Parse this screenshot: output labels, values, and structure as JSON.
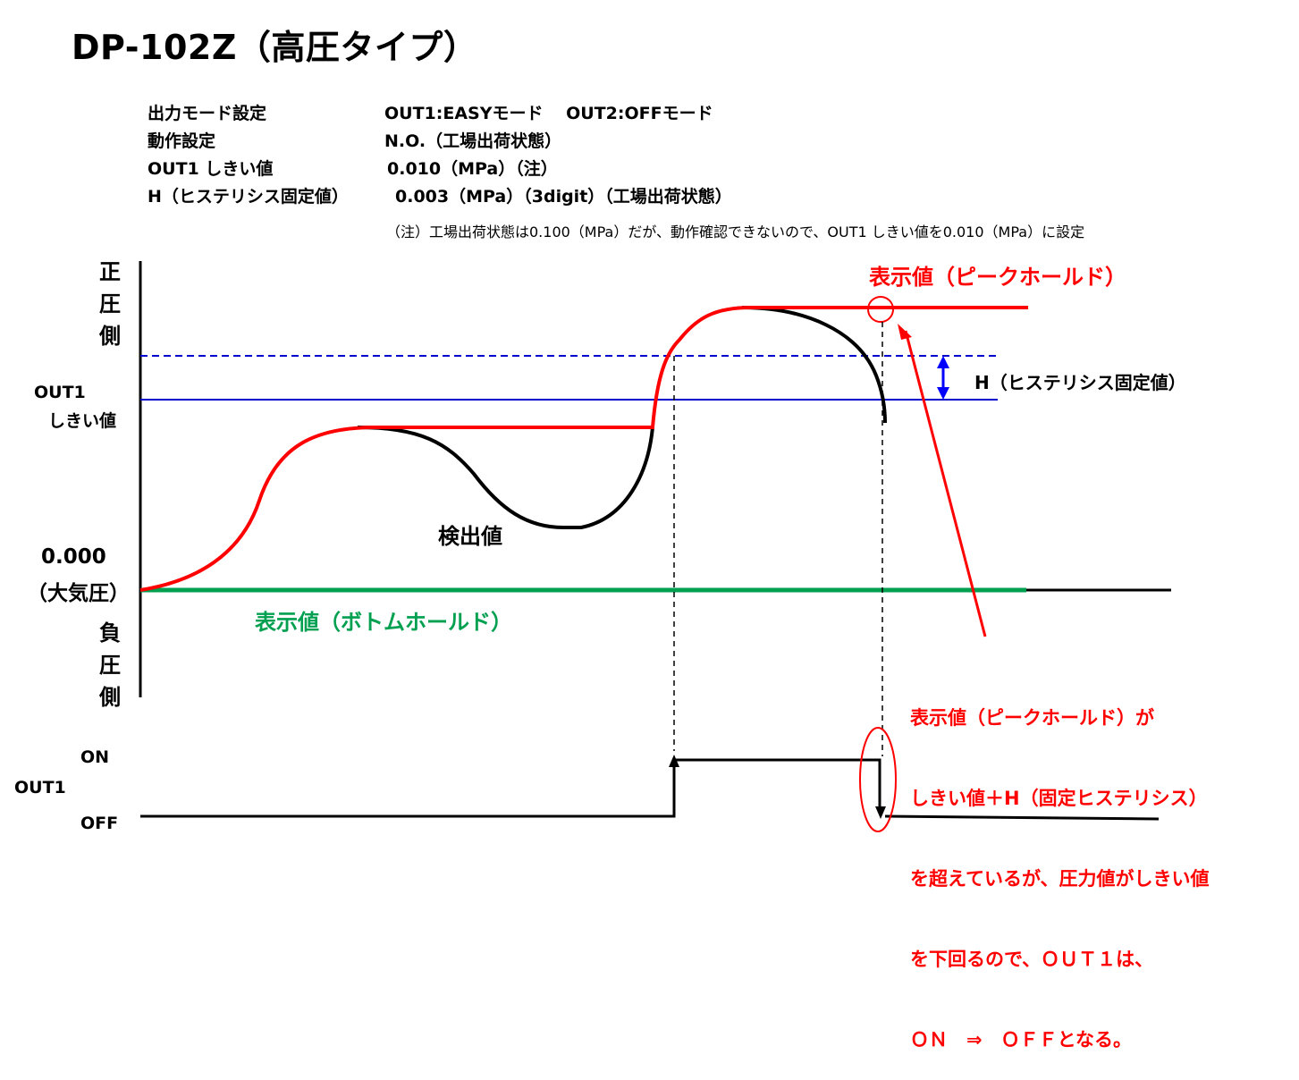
{
  "title": "DP-102Z（高圧タイプ）",
  "settings": [
    {
      "label": "出力モード設定",
      "value": "OUT1:EASYモード　 OUT2:OFFモード"
    },
    {
      "label": "動作設定",
      "value": "N.O.（工場出荷状態）"
    },
    {
      "label": "OUT1 しきい値",
      "value": "0.010（MPa）（注）"
    },
    {
      "label": "H（ヒステリシス固定値）",
      "value": "0.003（MPa）（3digit）（工場出荷状態）"
    }
  ],
  "note": "（注）工場出荷状態は0.100（MPa）だが、動作確認できないので、OUT1 しきい値を0.010（MPa）に設定",
  "axis": {
    "positive_side": [
      "正",
      "圧",
      "側"
    ],
    "negative_side": [
      "負",
      "圧",
      "側"
    ],
    "threshold_label_1": "OUT1",
    "threshold_label_2": "しきい値",
    "zero_label_1": "0.000",
    "zero_label_2": "（大気圧）"
  },
  "labels": {
    "detected_value": "検出値",
    "peak_hold": "表示値（ピークホールド）",
    "bottom_hold": "表示値（ボトムホールド）",
    "hysteresis": "H（ヒステリシス固定値）"
  },
  "explanation": [
    "表示値（ピークホールド）が",
    "しきい値＋H（固定ヒステリシス）",
    "を超えているが、圧力値がしきい値",
    "を下回るので、ＯＵＴ１は、",
    "ＯＮ　⇒　ＯＦＦとなる。"
  ],
  "output": {
    "name": "OUT1",
    "on": "ON",
    "off": "OFF"
  },
  "colors": {
    "peak": "#ff0000",
    "bottom": "#00a050",
    "detected": "#000000",
    "threshold": "#0000cc",
    "hysteresis_arrow": "#0000ff"
  }
}
